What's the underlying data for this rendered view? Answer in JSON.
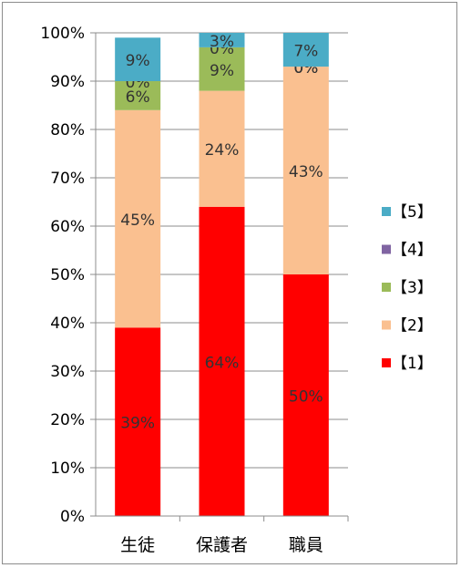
{
  "chart_data": {
    "type": "bar",
    "stacked": "percent",
    "categories": [
      "生徒",
      "保護者",
      "職員"
    ],
    "series": [
      {
        "name": "【1】",
        "values": [
          39,
          64,
          50
        ],
        "labels": [
          "39%",
          "64%",
          "50%"
        ],
        "color": "#ff0000"
      },
      {
        "name": "【2】",
        "values": [
          45,
          24,
          43
        ],
        "labels": [
          "45%",
          "24%",
          "43%"
        ],
        "color": "#fac090"
      },
      {
        "name": "【3】",
        "values": [
          6,
          9,
          0
        ],
        "labels": [
          "6%",
          "9%",
          "0%"
        ],
        "color": "#9bbb59"
      },
      {
        "name": "【4】",
        "values": [
          0,
          0,
          0
        ],
        "labels": [
          "0%",
          "0%",
          "0%"
        ],
        "color": "#8064a2"
      },
      {
        "name": "【5】",
        "values": [
          9,
          3,
          7
        ],
        "labels": [
          "9%",
          "3%",
          "7%"
        ],
        "color": "#4bacc6"
      }
    ],
    "ylim": [
      0,
      100
    ],
    "yticks": [
      "0%",
      "10%",
      "20%",
      "30%",
      "40%",
      "50%",
      "60%",
      "70%",
      "80%",
      "90%",
      "100%"
    ],
    "grid": true,
    "legend": "right",
    "legend_order": [
      "【5】",
      "【4】",
      "【3】",
      "【2】",
      "【1】"
    ]
  }
}
